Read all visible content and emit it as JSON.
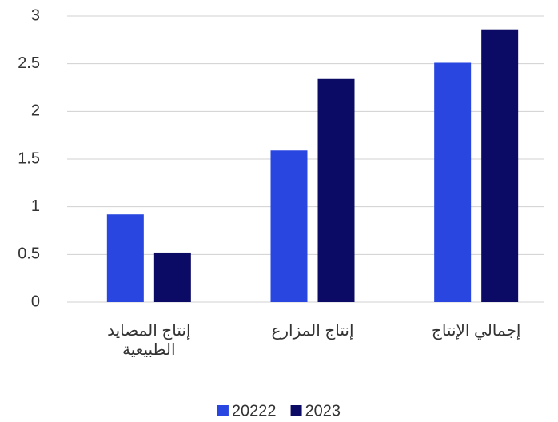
{
  "chart_data": {
    "type": "bar",
    "categories": [
      "إنتاج المصايد الطبيعية",
      "إنتاج المزارع",
      "إجمالي الإنتاج"
    ],
    "series": [
      {
        "name": "20222",
        "color": "#2947e0",
        "values": [
          0.92,
          1.59,
          2.51
        ]
      },
      {
        "name": "2023",
        "color": "#0b0b66",
        "values": [
          0.52,
          2.34,
          2.86
        ]
      }
    ],
    "ylim": [
      0,
      3
    ],
    "yticks": [
      0,
      0.5,
      1,
      1.5,
      2,
      2.5,
      3
    ],
    "grid": true,
    "legend": "bottom"
  }
}
